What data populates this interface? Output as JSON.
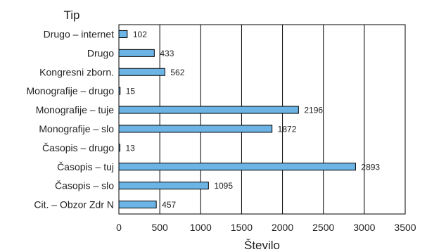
{
  "chart_data": {
    "type": "bar",
    "orientation": "horizontal",
    "ylabel": "Tip",
    "xlabel": "Število",
    "xlim": [
      0,
      3500
    ],
    "xticks": [
      0,
      500,
      1000,
      1500,
      2000,
      2500,
      3000,
      3500
    ],
    "grid": "vertical",
    "legend": "none",
    "bar_color": "#6cb4e6",
    "categories": [
      "Drugo – internet",
      "Drugo",
      "Kongresni zborn.",
      "Monografije – drugo",
      "Monografije – tuje",
      "Monografije – slo",
      "Časopis – drugo",
      "Časopis – tuj",
      "Časopis – slo",
      "Cit. – Obzor Zdr N"
    ],
    "values": [
      102,
      433,
      562,
      15,
      2196,
      1872,
      13,
      2893,
      1095,
      457
    ],
    "data_labels": [
      "102",
      "433",
      "562",
      "15",
      "2196",
      "1872",
      "13",
      "2893",
      "1095",
      "457"
    ]
  }
}
